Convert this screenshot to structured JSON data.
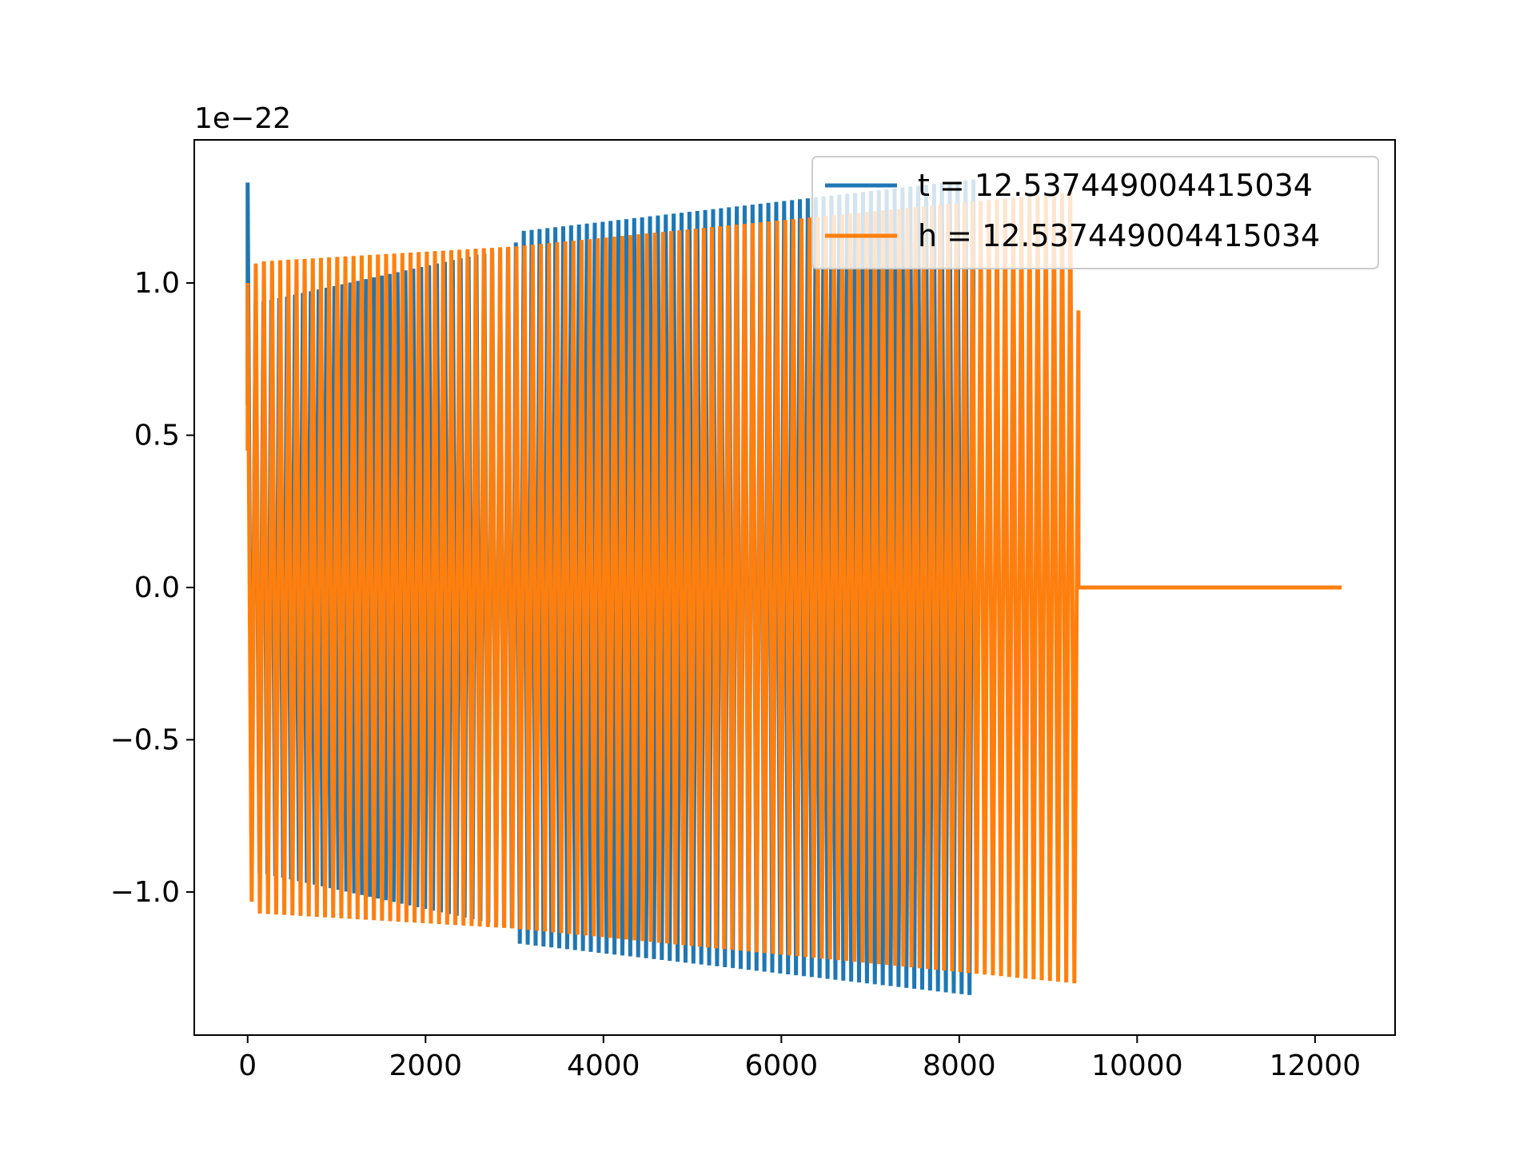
{
  "chart_data": {
    "type": "line",
    "offset_text": "1e−22",
    "xlim": [
      -600,
      12900
    ],
    "ylim": [
      -1.47,
      1.47
    ],
    "x_ticks": [
      0,
      2000,
      4000,
      6000,
      8000,
      10000,
      12000
    ],
    "x_tick_labels": [
      "0",
      "2000",
      "4000",
      "6000",
      "8000",
      "10000",
      "12000"
    ],
    "y_ticks": [
      -1.0,
      -0.5,
      0.0,
      0.5,
      1.0
    ],
    "y_tick_labels": [
      "−1.0",
      "−0.5",
      "0.0",
      "0.5",
      "1.0"
    ],
    "legend_position": "upper right",
    "grid": false,
    "series": [
      {
        "name": "t = 12.537449004415034",
        "color": "#1f77b4",
        "x_start": 0,
        "x_end": 8160,
        "cycles": 92,
        "envelope_points": [
          {
            "x": 0,
            "amp": 1.33
          },
          {
            "x": 40,
            "amp": 0.93
          },
          {
            "x": 3000,
            "amp": 1.12
          },
          {
            "x": 3060,
            "amp": 1.17
          },
          {
            "x": 8160,
            "amp": 1.34
          }
        ]
      },
      {
        "name": "h = 12.537449004415034",
        "color": "#ff7f0e",
        "x_start": 0,
        "x_end": 12300,
        "cycles": 102,
        "active_until": 9340,
        "envelope_points": [
          {
            "x": 0,
            "amp": 1.0
          },
          {
            "x": 100,
            "amp": 1.07
          },
          {
            "x": 3000,
            "amp": 1.12
          },
          {
            "x": 9300,
            "amp": 1.3
          },
          {
            "x": 9340,
            "amp": 0.91
          }
        ]
      }
    ]
  }
}
